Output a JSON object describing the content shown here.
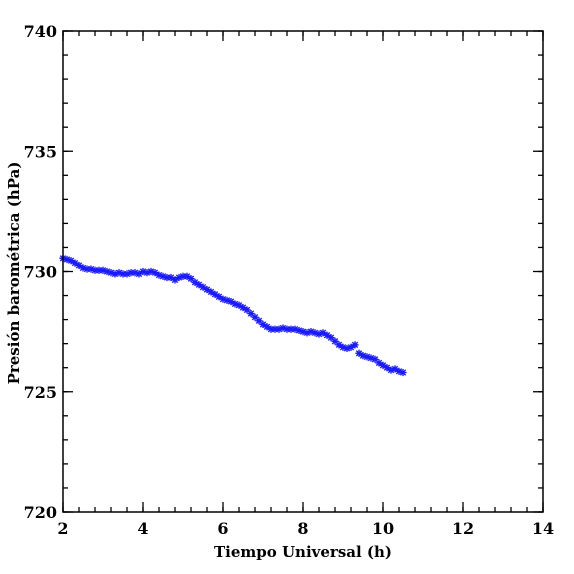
{
  "chart_data": {
    "type": "scatter",
    "xlabel": "Tiempo Universal (h)",
    "ylabel": "Presión barométrica (hPa)",
    "xlim": [
      2,
      14
    ],
    "ylim": [
      720,
      740
    ],
    "x_ticks": [
      2,
      4,
      6,
      8,
      10,
      12,
      14
    ],
    "y_ticks": [
      720,
      725,
      730,
      735,
      740
    ],
    "x_minor_step": 0.4,
    "y_minor_step": 1,
    "marker": "asterisk",
    "marker_color": "#1a1aff",
    "grid": false,
    "series": [
      {
        "x": [
          2.0,
          2.1,
          2.2,
          2.3,
          2.4,
          2.5,
          2.6,
          2.7,
          2.8,
          2.9,
          3.0,
          3.1,
          3.2,
          3.3,
          3.4,
          3.5,
          3.6,
          3.7,
          3.8,
          3.9,
          4.0,
          4.1,
          4.2,
          4.3,
          4.4,
          4.5,
          4.6,
          4.7,
          4.8,
          4.9,
          5.0,
          5.1,
          5.2,
          5.3,
          5.4,
          5.5,
          5.6,
          5.7,
          5.8,
          5.9,
          6.0,
          6.1,
          6.2,
          6.3,
          6.4,
          6.5,
          6.6,
          6.7,
          6.8,
          6.9,
          7.0,
          7.1,
          7.2,
          7.3,
          7.4,
          7.5,
          7.6,
          7.7,
          7.8,
          7.9,
          8.0,
          8.1,
          8.2,
          8.3,
          8.4,
          8.5,
          8.6,
          8.7,
          8.8,
          8.9,
          9.0,
          9.1,
          9.2,
          9.3,
          9.4,
          9.5,
          9.6,
          9.7,
          9.8,
          9.9,
          10.0,
          10.1,
          10.2,
          10.3,
          10.4,
          10.5
        ],
        "y": [
          730.55,
          730.5,
          730.45,
          730.35,
          730.25,
          730.15,
          730.1,
          730.1,
          730.05,
          730.05,
          730.05,
          730.0,
          729.95,
          729.9,
          729.95,
          729.9,
          729.9,
          729.95,
          729.95,
          729.9,
          730.0,
          729.95,
          730.0,
          729.95,
          729.85,
          729.8,
          729.75,
          729.75,
          729.65,
          729.75,
          729.8,
          729.8,
          729.7,
          729.55,
          729.45,
          729.35,
          729.25,
          729.15,
          729.05,
          728.95,
          728.85,
          728.8,
          728.75,
          728.65,
          728.6,
          728.5,
          728.4,
          728.25,
          728.1,
          727.95,
          727.8,
          727.7,
          727.6,
          727.6,
          727.6,
          727.65,
          727.6,
          727.6,
          727.6,
          727.55,
          727.5,
          727.45,
          727.5,
          727.45,
          727.4,
          727.45,
          727.35,
          727.25,
          727.1,
          726.95,
          726.85,
          726.8,
          726.85,
          726.95,
          726.6,
          726.5,
          726.45,
          726.4,
          726.35,
          726.2,
          726.1,
          726.0,
          725.9,
          725.95,
          725.85,
          725.8
        ]
      }
    ]
  }
}
